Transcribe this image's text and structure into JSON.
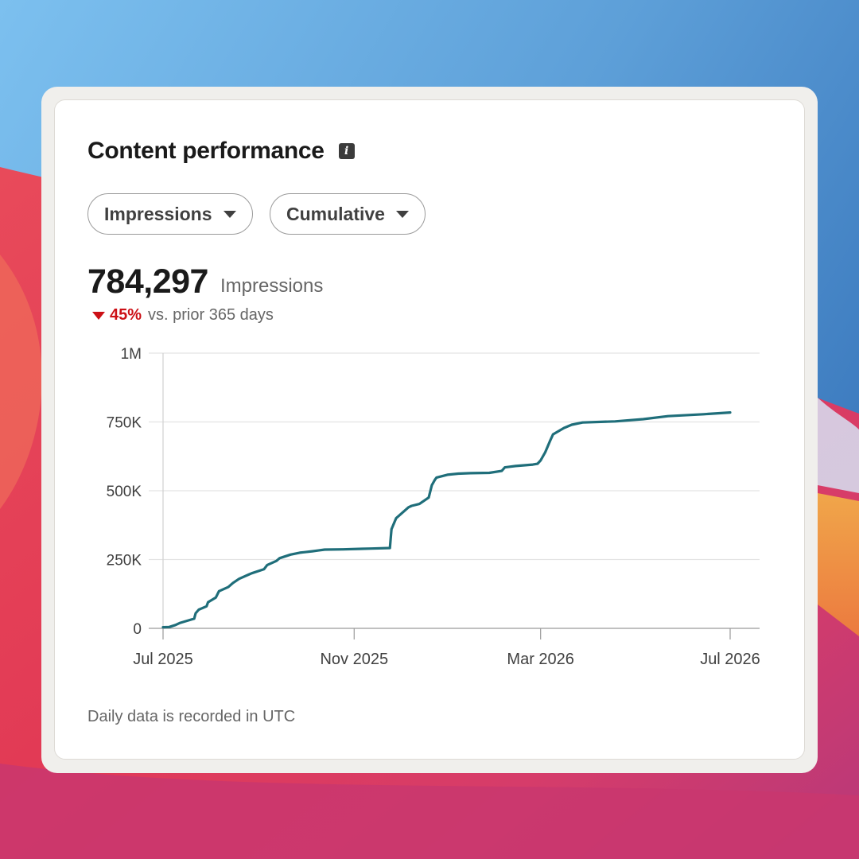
{
  "colors": {
    "accent_line": "#1f6e7a",
    "negative": "#cc1016"
  },
  "card": {
    "title": "Content performance",
    "info_icon": "info-icon",
    "metric_dropdown": {
      "selected": "Impressions"
    },
    "mode_dropdown": {
      "selected": "Cumulative"
    },
    "total_value": "784,297",
    "total_label": "Impressions",
    "change_pct": "45%",
    "change_direction": "down",
    "change_text": "vs. prior 365 days",
    "footnote": "Daily data is recorded in UTC"
  },
  "chart_data": {
    "type": "line",
    "title": "",
    "xlabel": "",
    "ylabel": "",
    "ylim": [
      0,
      1000000
    ],
    "yticks": [
      {
        "value": 0,
        "label": "0"
      },
      {
        "value": 250000,
        "label": "250K"
      },
      {
        "value": 500000,
        "label": "500K"
      },
      {
        "value": 750000,
        "label": "750K"
      },
      {
        "value": 1000000,
        "label": "1M"
      }
    ],
    "xlim": [
      "2025-07-01",
      "2026-07-01"
    ],
    "xticks": [
      {
        "value": "2025-07-01",
        "label": "Jul 2025"
      },
      {
        "value": "2025-11-01",
        "label": "Nov 2025"
      },
      {
        "value": "2026-03-01",
        "label": "Mar 2026"
      },
      {
        "value": "2026-07-01",
        "label": "Jul 2026"
      }
    ],
    "grid": true,
    "series": [
      {
        "x": [
          "2025-07-01",
          "2025-07-05",
          "2025-07-09",
          "2025-07-12",
          "2025-07-15",
          "2025-07-21",
          "2025-07-22",
          "2025-07-24",
          "2025-07-29",
          "2025-07-30",
          "2025-08-04",
          "2025-08-06",
          "2025-08-12",
          "2025-08-15",
          "2025-08-19",
          "2025-08-25",
          "2025-08-27",
          "2025-09-04",
          "2025-09-06",
          "2025-09-12",
          "2025-09-14",
          "2025-09-21",
          "2025-09-27",
          "2025-10-05",
          "2025-10-09",
          "2025-10-13",
          "2025-10-25",
          "2025-11-06",
          "2025-11-12",
          "2025-11-24",
          "2025-11-25",
          "2025-11-28",
          "2025-12-02",
          "2025-12-06",
          "2025-12-08",
          "2025-12-13",
          "2025-12-19",
          "2025-12-21",
          "2025-12-23",
          "2025-12-24",
          "2025-12-31",
          "2026-01-07",
          "2026-01-15",
          "2026-01-27",
          "2026-02-04",
          "2026-02-06",
          "2026-02-13",
          "2026-02-24",
          "2026-02-27",
          "2026-03-01",
          "2026-03-04",
          "2026-03-07",
          "2026-03-09",
          "2026-03-16",
          "2026-03-21",
          "2026-03-28",
          "2026-04-18",
          "2026-05-06",
          "2026-05-22",
          "2026-06-14",
          "2026-07-01"
        ],
        "y": [
          4000,
          5000,
          12000,
          20000,
          25000,
          35000,
          55000,
          68000,
          80000,
          95000,
          112000,
          135000,
          150000,
          165000,
          180000,
          195000,
          200000,
          215000,
          230000,
          245000,
          255000,
          268000,
          275000,
          280000,
          283000,
          286000,
          287000,
          289000,
          290000,
          292000,
          360000,
          400000,
          420000,
          440000,
          445000,
          452000,
          475000,
          520000,
          540000,
          548000,
          558000,
          562000,
          564000,
          565000,
          572000,
          585000,
          590000,
          595000,
          598000,
          610000,
          640000,
          680000,
          705000,
          728000,
          740000,
          748000,
          752000,
          760000,
          771000,
          778000,
          784297
        ]
      }
    ]
  }
}
